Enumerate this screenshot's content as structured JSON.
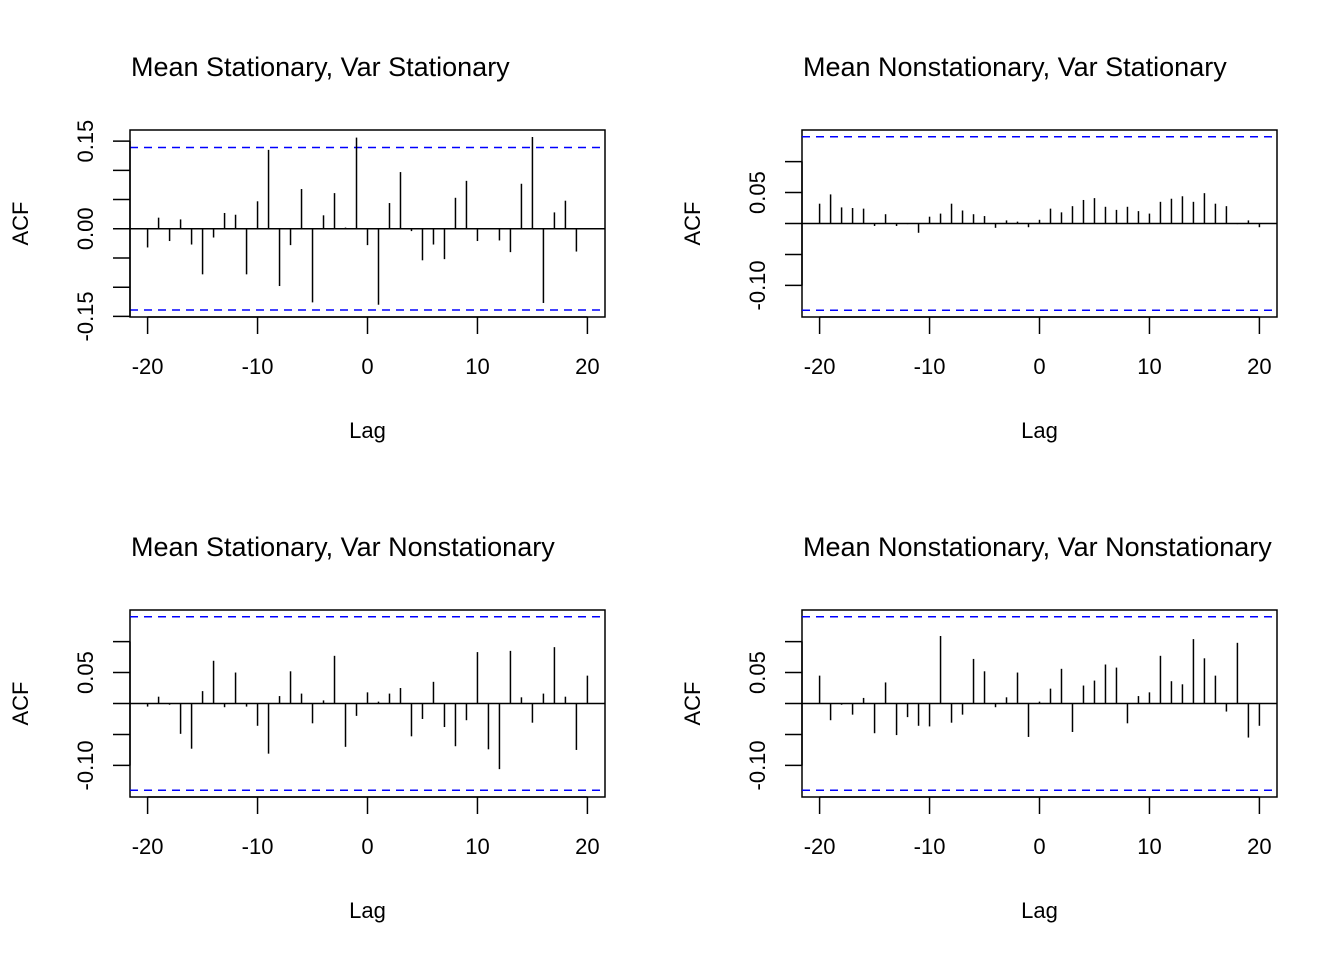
{
  "chart_data": [
    {
      "type": "bar",
      "title": "Mean Stationary, Var Stationary",
      "xlabel": "Lag",
      "ylabel": "ACF",
      "xlim": [
        -21.6,
        21.6
      ],
      "ylim": [
        -0.151,
        0.169
      ],
      "x_ticks": [
        -20,
        -10,
        0,
        10,
        20
      ],
      "y_ticks": [
        -0.15,
        -0.1,
        -0.05,
        0.0,
        0.05,
        0.1,
        0.15
      ],
      "y_tick_labels": {
        "-0.15": "-0.15",
        "0": "0.00",
        "0.15": "0.15"
      },
      "ci": 0.139,
      "ci_color": "#0000ff",
      "lags": [
        -20,
        -19,
        -18,
        -17,
        -16,
        -15,
        -14,
        -13,
        -12,
        -11,
        -10,
        -9,
        -8,
        -7,
        -6,
        -5,
        -4,
        -3,
        -2,
        -1,
        0,
        1,
        2,
        3,
        4,
        5,
        6,
        7,
        8,
        9,
        10,
        11,
        12,
        13,
        14,
        15,
        16,
        17,
        18,
        19,
        20
      ],
      "values": [
        -0.032,
        0.019,
        -0.021,
        0.016,
        -0.027,
        -0.078,
        -0.015,
        0.027,
        0.024,
        -0.078,
        0.047,
        0.135,
        -0.098,
        -0.028,
        0.068,
        -0.126,
        0.023,
        0.061,
        0.002,
        0.156,
        -0.028,
        -0.13,
        0.044,
        0.097,
        -0.004,
        -0.054,
        -0.027,
        -0.052,
        0.053,
        0.082,
        -0.021,
        0.0,
        -0.02,
        -0.04,
        0.077,
        0.157,
        -0.127,
        0.028,
        0.048,
        -0.039,
        0.0
      ]
    },
    {
      "type": "bar",
      "title": "Mean Nonstationary, Var Stationary",
      "xlabel": "Lag",
      "ylabel": "ACF",
      "xlim": [
        -21.6,
        21.6
      ],
      "ylim": [
        -0.151,
        0.151
      ],
      "x_ticks": [
        -20,
        -10,
        0,
        10,
        20
      ],
      "y_ticks": [
        -0.1,
        -0.05,
        0.0,
        0.05,
        0.1
      ],
      "y_tick_labels": {
        "-0.1": "-0.10",
        "0.05": "0.05"
      },
      "ci": 0.14,
      "ci_color": "#0000ff",
      "lags": [
        -20,
        -19,
        -18,
        -17,
        -16,
        -15,
        -14,
        -13,
        -12,
        -11,
        -10,
        -9,
        -8,
        -7,
        -6,
        -5,
        -4,
        -3,
        -2,
        -1,
        0,
        1,
        2,
        3,
        4,
        5,
        6,
        7,
        8,
        9,
        10,
        11,
        12,
        13,
        14,
        15,
        16,
        17,
        18,
        19,
        20
      ],
      "values": [
        0.032,
        0.047,
        0.026,
        0.025,
        0.024,
        -0.004,
        0.015,
        -0.004,
        -0.001,
        -0.015,
        0.011,
        0.016,
        0.032,
        0.021,
        0.015,
        0.012,
        -0.007,
        0.005,
        0.003,
        -0.006,
        0.006,
        0.024,
        0.018,
        0.028,
        0.038,
        0.041,
        0.027,
        0.022,
        0.027,
        0.02,
        0.016,
        0.035,
        0.04,
        0.044,
        0.035,
        0.049,
        0.032,
        0.028,
        -0.001,
        0.005,
        -0.006
      ]
    },
    {
      "type": "bar",
      "title": "Mean Stationary, Var Nonstationary",
      "xlabel": "Lag",
      "ylabel": "ACF",
      "xlim": [
        -21.6,
        21.6
      ],
      "ylim": [
        -0.151,
        0.151
      ],
      "x_ticks": [
        -20,
        -10,
        0,
        10,
        20
      ],
      "y_ticks": [
        -0.1,
        -0.05,
        0.0,
        0.05,
        0.1
      ],
      "y_tick_labels": {
        "-0.1": "-0.10",
        "0.05": "0.05"
      },
      "ci": 0.14,
      "ci_color": "#0000ff",
      "lags": [
        -20,
        -19,
        -18,
        -17,
        -16,
        -15,
        -14,
        -13,
        -12,
        -11,
        -10,
        -9,
        -8,
        -7,
        -6,
        -5,
        -4,
        -3,
        -2,
        -1,
        0,
        1,
        2,
        3,
        4,
        5,
        6,
        7,
        8,
        9,
        10,
        11,
        12,
        13,
        14,
        15,
        16,
        17,
        18,
        19,
        20
      ],
      "values": [
        -0.005,
        0.011,
        -0.002,
        -0.049,
        -0.073,
        0.02,
        0.069,
        -0.006,
        0.05,
        -0.005,
        -0.036,
        -0.081,
        0.012,
        0.052,
        0.016,
        -0.032,
        0.005,
        0.077,
        -0.07,
        -0.02,
        0.018,
        0.003,
        0.016,
        0.025,
        -0.053,
        -0.025,
        0.035,
        -0.038,
        -0.069,
        -0.027,
        0.083,
        -0.074,
        -0.106,
        0.085,
        0.01,
        -0.031,
        0.016,
        0.091,
        0.011,
        -0.075,
        0.045
      ]
    },
    {
      "type": "bar",
      "title": "Mean Nonstationary, Var Nonstationary",
      "xlabel": "Lag",
      "ylabel": "ACF",
      "xlim": [
        -21.6,
        21.6
      ],
      "ylim": [
        -0.151,
        0.151
      ],
      "x_ticks": [
        -20,
        -10,
        0,
        10,
        20
      ],
      "y_ticks": [
        -0.1,
        -0.05,
        0.0,
        0.05,
        0.1
      ],
      "y_tick_labels": {
        "-0.1": "-0.10",
        "0.05": "0.05"
      },
      "ci": 0.14,
      "ci_color": "#0000ff",
      "lags": [
        -20,
        -19,
        -18,
        -17,
        -16,
        -15,
        -14,
        -13,
        -12,
        -11,
        -10,
        -9,
        -8,
        -7,
        -6,
        -5,
        -4,
        -3,
        -2,
        -1,
        0,
        1,
        2,
        3,
        4,
        5,
        6,
        7,
        8,
        9,
        10,
        11,
        12,
        13,
        14,
        15,
        16,
        17,
        18,
        19,
        20
      ],
      "values": [
        0.045,
        -0.027,
        -0.002,
        -0.018,
        0.009,
        -0.048,
        0.034,
        -0.051,
        -0.022,
        -0.036,
        -0.037,
        0.109,
        -0.031,
        -0.018,
        0.072,
        0.052,
        -0.006,
        0.01,
        0.05,
        -0.054,
        0.003,
        0.024,
        0.056,
        -0.046,
        0.029,
        0.037,
        0.063,
        0.058,
        -0.032,
        0.012,
        0.018,
        0.077,
        0.036,
        0.031,
        0.104,
        0.073,
        0.045,
        -0.013,
        0.098,
        -0.055,
        -0.036
      ]
    }
  ]
}
